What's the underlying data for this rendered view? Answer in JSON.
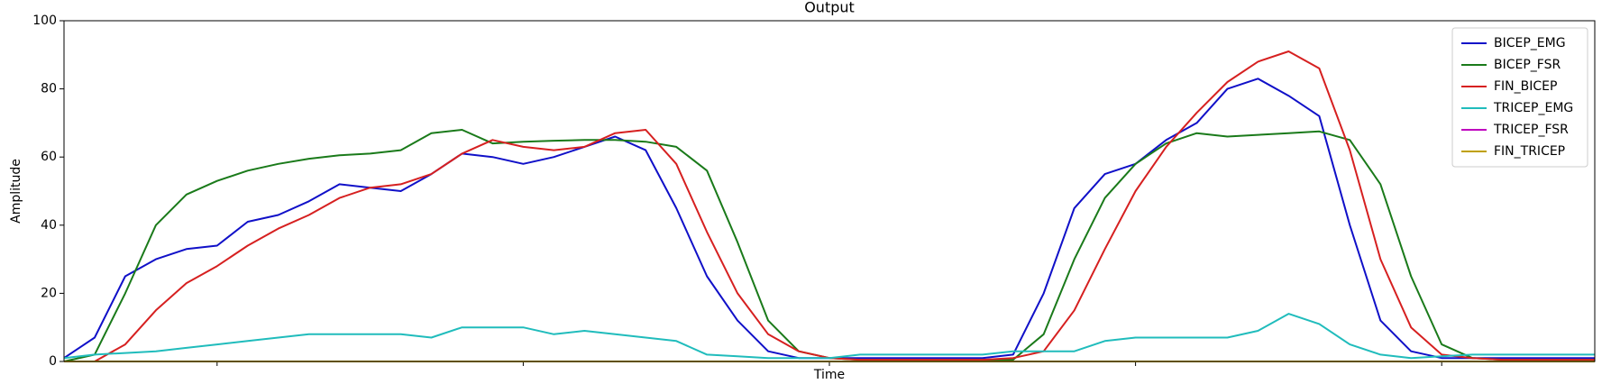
{
  "chart_data": {
    "type": "line",
    "title": "Output",
    "x_label": "Time",
    "y_label": "Amplitude",
    "x": [
      0,
      10,
      20,
      30,
      40,
      50,
      60,
      70,
      80,
      90,
      100,
      110,
      120,
      130,
      140,
      150,
      160,
      170,
      180,
      190,
      200,
      210,
      220,
      230,
      240,
      250,
      260,
      270,
      280,
      290,
      300,
      310,
      320,
      330,
      340,
      350,
      360,
      370,
      380,
      390,
      400,
      410,
      420,
      430,
      440,
      450,
      460,
      470,
      480,
      490,
      500
    ],
    "xlim": [
      0,
      500
    ],
    "xticks": [
      50,
      150,
      250,
      350,
      450
    ],
    "ylim": [
      0,
      100
    ],
    "yticks": [
      0,
      20,
      40,
      60,
      80,
      100
    ],
    "legend": "upper right",
    "series": [
      {
        "name": "BICEP_EMG",
        "color": "#1010c8",
        "values": [
          1,
          7,
          25,
          30,
          33,
          34,
          41,
          43,
          47,
          52,
          51,
          50,
          55,
          61,
          60,
          58,
          60,
          63,
          66,
          62,
          45,
          25,
          12,
          3,
          1,
          1,
          1,
          1,
          1,
          1,
          1,
          2,
          20,
          45,
          55,
          58,
          65,
          70,
          80,
          83,
          78,
          72,
          40,
          12,
          3,
          1,
          1,
          1,
          1,
          1,
          1
        ]
      },
      {
        "name": "BICEP_FSR",
        "color": "#1a7a1a",
        "values": [
          0,
          2,
          20,
          40,
          49,
          53,
          56,
          58,
          59.5,
          60.5,
          61,
          62,
          67,
          68,
          64,
          64.5,
          64.8,
          65,
          65,
          64.5,
          63,
          56,
          35,
          12,
          3,
          1,
          0.5,
          0.5,
          0.5,
          0.5,
          0.5,
          0.5,
          8,
          30,
          48,
          58,
          64,
          67,
          66,
          66.5,
          67,
          67.5,
          65,
          52,
          25,
          5,
          1,
          0.5,
          0.5,
          0.5,
          0.5
        ]
      },
      {
        "name": "FIN_BICEP",
        "color": "#d62020",
        "values": [
          0,
          0,
          5,
          15,
          23,
          28,
          34,
          39,
          43,
          48,
          51,
          52,
          55,
          61,
          65,
          63,
          62,
          63,
          67,
          68,
          58,
          38,
          20,
          8,
          3,
          1,
          0.5,
          0.5,
          0.5,
          0.5,
          0.5,
          1,
          3,
          15,
          33,
          50,
          63,
          73,
          82,
          88,
          91,
          86,
          62,
          30,
          10,
          2,
          1,
          0.5,
          0.5,
          0.5,
          0.5
        ]
      },
      {
        "name": "TRICEP_EMG",
        "color": "#20bcbc",
        "values": [
          1,
          2,
          2.5,
          3,
          4,
          5,
          6,
          7,
          8,
          8,
          8,
          8,
          7,
          10,
          10,
          10,
          8,
          9,
          8,
          7,
          6,
          2,
          1.5,
          1,
          1,
          1,
          2,
          2,
          2,
          2,
          2,
          3,
          3,
          3,
          6,
          7,
          7,
          7,
          7,
          9,
          14,
          11,
          5,
          2,
          1,
          1.5,
          2,
          2,
          2,
          2,
          2
        ]
      },
      {
        "name": "TRICEP_FSR",
        "color": "#bf00bf",
        "values": [
          0,
          0,
          0,
          0,
          0,
          0,
          0,
          0,
          0,
          0,
          0,
          0,
          0,
          0,
          0,
          0,
          0,
          0,
          0,
          0,
          0,
          0,
          0,
          0,
          0,
          0,
          0,
          0,
          0,
          0,
          0,
          0,
          0,
          0,
          0,
          0,
          0,
          0,
          0,
          0,
          0,
          0,
          0,
          0,
          0,
          0,
          0,
          0,
          0,
          0,
          0
        ]
      },
      {
        "name": "FIN_TRICEP",
        "color": "#bfa000",
        "values": [
          0,
          0,
          0,
          0,
          0,
          0,
          0,
          0,
          0,
          0,
          0,
          0,
          0,
          0,
          0,
          0,
          0,
          0,
          0,
          0,
          0,
          0,
          0,
          0,
          0,
          0,
          0,
          0,
          0,
          0,
          0,
          0,
          0,
          0,
          0,
          0,
          0,
          0,
          0,
          0,
          0,
          0,
          0,
          0,
          0,
          0,
          0,
          0,
          0,
          0,
          0
        ]
      }
    ]
  }
}
